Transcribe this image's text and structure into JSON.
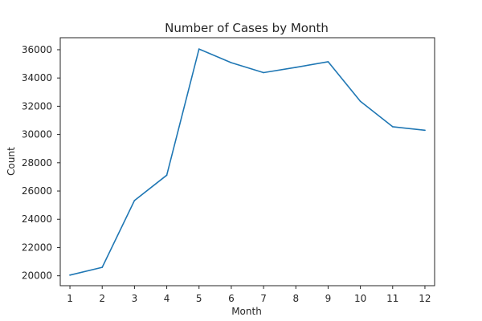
{
  "chart_data": {
    "type": "line",
    "title": "Number of Cases by Month",
    "xlabel": "Month",
    "ylabel": "Count",
    "x": [
      1,
      2,
      3,
      4,
      5,
      6,
      7,
      8,
      9,
      10,
      11,
      12
    ],
    "series": [
      {
        "values": [
          20050,
          20600,
          25330,
          27120,
          36050,
          35080,
          34380,
          34750,
          35150,
          32350,
          30550,
          30300
        ],
        "color": "#1f77b4"
      }
    ],
    "xlim": [
      0.7,
      12.3
    ],
    "ylim": [
      19300,
      36850
    ],
    "x_ticks": [
      "1",
      "2",
      "3",
      "4",
      "5",
      "6",
      "7",
      "8",
      "9",
      "10",
      "11",
      "12"
    ],
    "y_ticks": [
      "20000",
      "22000",
      "24000",
      "26000",
      "28000",
      "30000",
      "32000",
      "34000",
      "36000"
    ],
    "grid": false,
    "background": "#ffffff",
    "axis_color": "#262626"
  }
}
